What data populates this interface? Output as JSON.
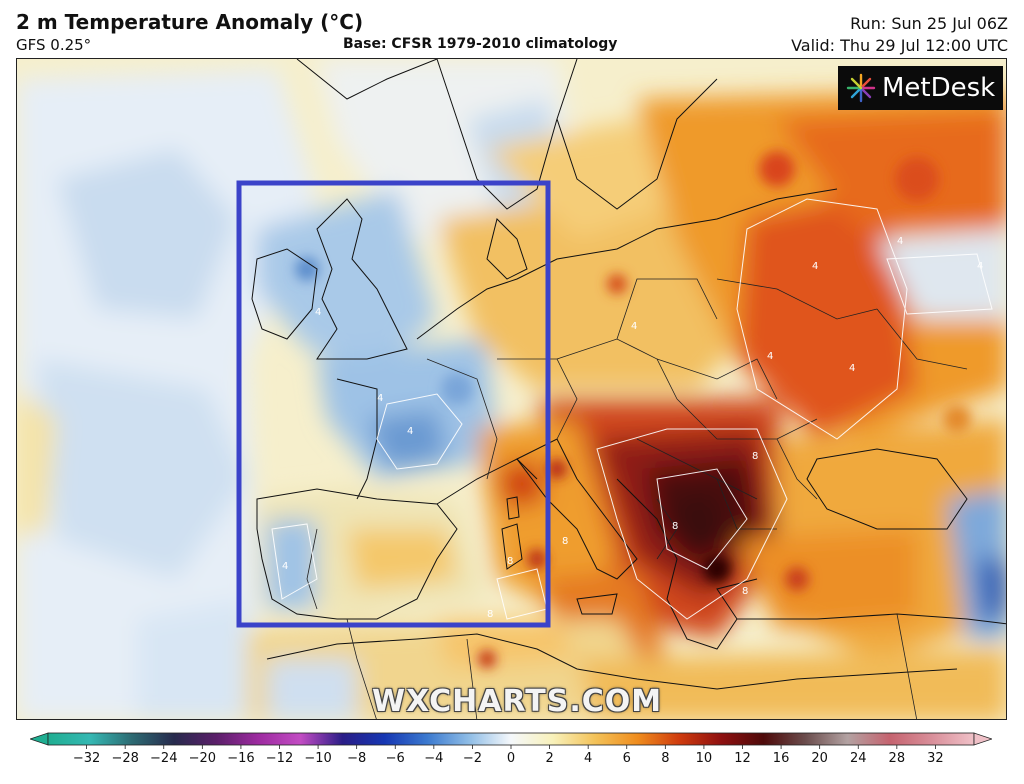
{
  "header": {
    "title": "2 m Temperature Anomaly (°C)",
    "model": "GFS 0.25°",
    "base": "Base: CFSR 1979-2010 climatology",
    "run": "Run: Sun 25 Jul 06Z",
    "valid": "Valid: Thu 29 Jul 12:00 UTC"
  },
  "logo": {
    "icon": "starburst-icon",
    "text": "MetDesk"
  },
  "watermark": "WXCHARTS.COM",
  "highlight_box_color": "#3b43c9",
  "colorbar": {
    "ticks": [
      "−32",
      "−28",
      "−24",
      "−20",
      "−16",
      "−12",
      "−10",
      "−8",
      "−6",
      "−4",
      "−2",
      "0",
      "2",
      "4",
      "6",
      "8",
      "10",
      "12",
      "16",
      "20",
      "24",
      "28",
      "32"
    ],
    "colors": [
      "#1fae91",
      "#35b8b3",
      "#2d6a72",
      "#272a4d",
      "#5b1f6a",
      "#9d2ba0",
      "#c24cc3",
      "#2a1d87",
      "#1637b3",
      "#3b79cf",
      "#8fbde6",
      "#f5f8fb",
      "#f8f1ba",
      "#f3c259",
      "#ef8d1e",
      "#cf3b0e",
      "#8e1010",
      "#4e0a0a",
      "#6b4d4d",
      "#b3a2a2",
      "#c5636f",
      "#d98f9a",
      "#f0c1c8"
    ]
  },
  "map_labels": [
    {
      "text": "4"
    },
    {
      "text": "4"
    },
    {
      "text": "4"
    },
    {
      "text": "4"
    },
    {
      "text": "4"
    },
    {
      "text": "4"
    },
    {
      "text": "8"
    },
    {
      "text": "8"
    },
    {
      "text": "8"
    },
    {
      "text": "8"
    },
    {
      "text": "8"
    },
    {
      "text": "8"
    },
    {
      "text": "4"
    },
    {
      "text": "4"
    },
    {
      "text": "4"
    },
    {
      "text": "4"
    }
  ]
}
